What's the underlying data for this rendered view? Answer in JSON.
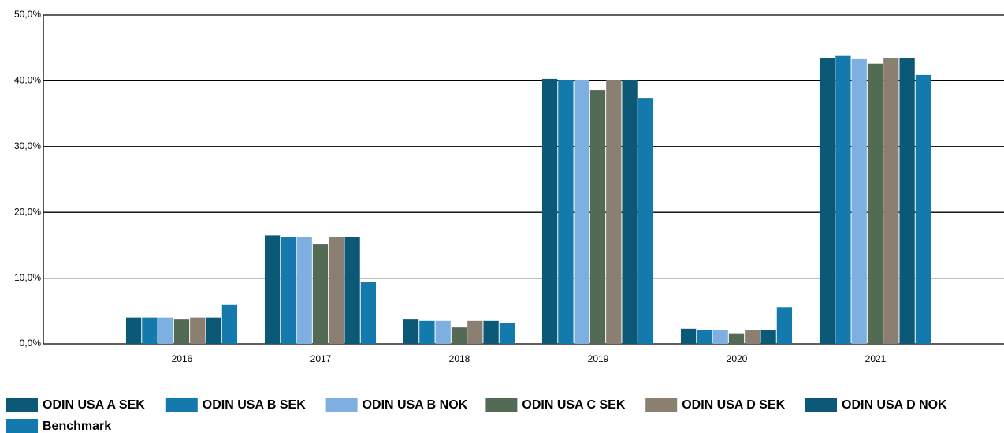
{
  "chart_data": {
    "type": "bar",
    "categories": [
      "2016",
      "2017",
      "2018",
      "2019",
      "2020",
      "2021"
    ],
    "series": [
      {
        "name": "ODIN USA A SEK",
        "color": "#0b5877",
        "values": [
          4.0,
          16.5,
          3.7,
          40.3,
          2.3,
          43.5
        ]
      },
      {
        "name": "ODIN USA B SEK",
        "color": "#1479ad",
        "values": [
          4.0,
          16.3,
          3.5,
          40.1,
          2.1,
          43.8
        ]
      },
      {
        "name": "ODIN USA B NOK",
        "color": "#7db0e0",
        "values": [
          4.0,
          16.3,
          3.5,
          40.1,
          2.1,
          43.3
        ]
      },
      {
        "name": "ODIN USA C SEK",
        "color": "#536b55",
        "values": [
          3.7,
          15.1,
          2.5,
          38.6,
          1.6,
          42.6
        ]
      },
      {
        "name": "ODIN USA D SEK",
        "color": "#8b7f72",
        "values": [
          4.0,
          16.3,
          3.5,
          40.1,
          2.1,
          43.5
        ]
      },
      {
        "name": "ODIN USA D NOK",
        "color": "#0b5877",
        "values": [
          4.0,
          16.3,
          3.5,
          40.1,
          2.1,
          43.5
        ]
      },
      {
        "name": "Benchmark",
        "color": "#1479ad",
        "values": [
          5.9,
          9.4,
          3.2,
          37.4,
          5.6,
          40.9
        ]
      }
    ],
    "ylim": [
      0,
      50
    ],
    "yticks": [
      {
        "value": 0,
        "label": "0,0%"
      },
      {
        "value": 10,
        "label": "10,0%"
      },
      {
        "value": 20,
        "label": "20,0%"
      },
      {
        "value": 30,
        "label": "30,0%"
      },
      {
        "value": 40,
        "label": "40,0%"
      },
      {
        "value": 50,
        "label": "50,0%"
      }
    ],
    "grid": true
  }
}
